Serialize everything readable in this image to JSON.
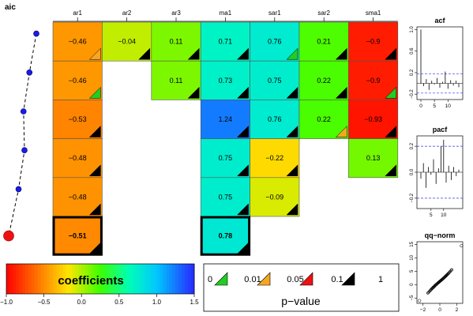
{
  "chart_data": {
    "type": "heatmap",
    "title": "",
    "aic_label": "aic",
    "columns": [
      "ar1",
      "ar2",
      "ar3",
      "ma1",
      "sar1",
      "sar2",
      "sma1"
    ],
    "rows": [
      {
        "aic": 40,
        "cells": [
          {
            "col": "ar1",
            "label": "−0.46",
            "value": -0.46,
            "pv": "0.05"
          },
          {
            "col": "ar2",
            "label": "−0.04",
            "value": -0.04,
            "pv": "1"
          },
          {
            "col": "ar3",
            "label": "0.11",
            "value": 0.11,
            "pv": "1"
          },
          {
            "col": "ma1",
            "label": "0.71",
            "value": 0.71,
            "pv": "1"
          },
          {
            "col": "sar1",
            "label": "0.76",
            "value": 0.76,
            "pv": "0.01"
          },
          {
            "col": "sar2",
            "label": "0.21",
            "value": 0.21,
            "pv": "1"
          },
          {
            "col": "sma1",
            "label": "−0.9",
            "value": -0.9,
            "pv": "1"
          }
        ]
      },
      {
        "aic": 33,
        "cells": [
          {
            "col": "ar1",
            "label": "−0.46",
            "value": -0.46,
            "pv": "0.01"
          },
          {
            "col": "ar3",
            "label": "0.11",
            "value": 0.11,
            "pv": "1"
          },
          {
            "col": "ma1",
            "label": "0.73",
            "value": 0.73,
            "pv": "1"
          },
          {
            "col": "sar1",
            "label": "0.75",
            "value": 0.75,
            "pv": "1"
          },
          {
            "col": "sar2",
            "label": "0.22",
            "value": 0.22,
            "pv": "1"
          },
          {
            "col": "sma1",
            "label": "−0.9",
            "value": -0.9,
            "pv": "0.01"
          }
        ]
      },
      {
        "aic": 27,
        "cells": [
          {
            "col": "ar1",
            "label": "−0.53",
            "value": -0.53,
            "pv": "0"
          },
          {
            "col": "ma1",
            "label": "1.24",
            "value": 1.24,
            "pv": "1"
          },
          {
            "col": "sar1",
            "label": "0.76",
            "value": 0.76,
            "pv": "1"
          },
          {
            "col": "sar2",
            "label": "0.22",
            "value": 0.22,
            "pv": "0.05"
          },
          {
            "col": "sma1",
            "label": "−0.93",
            "value": -0.93,
            "pv": "1"
          }
        ]
      },
      {
        "aic": 28,
        "cells": [
          {
            "col": "ar1",
            "label": "−0.48",
            "value": -0.48,
            "pv": "0"
          },
          {
            "col": "ma1",
            "label": "0.75",
            "value": 0.75,
            "pv": "0"
          },
          {
            "col": "sar1",
            "label": "−0.22",
            "value": -0.22,
            "pv": "1"
          },
          {
            "col": "sma1",
            "label": "0.13",
            "value": 0.13,
            "pv": "1"
          }
        ]
      },
      {
        "aic": 22,
        "cells": [
          {
            "col": "ar1",
            "label": "−0.48",
            "value": -0.48,
            "pv": "0"
          },
          {
            "col": "ma1",
            "label": "0.75",
            "value": 0.75,
            "pv": "0"
          },
          {
            "col": "sar1",
            "label": "−0.09",
            "value": -0.09,
            "pv": "1"
          }
        ]
      },
      {
        "aic": 12,
        "best": true,
        "cells": [
          {
            "col": "ar1",
            "label": "−0.51",
            "value": -0.51,
            "pv": "0"
          },
          {
            "col": "ma1",
            "label": "0.78",
            "value": 0.78,
            "pv": "0"
          }
        ]
      }
    ],
    "colorbar": {
      "title": "coefficients",
      "min": -1.0,
      "max": 1.5,
      "ticks": [
        "−1.0",
        "−0.5",
        "0.0",
        "0.5",
        "1.0",
        "1.5"
      ],
      "tick_values": [
        -1.0,
        -0.5,
        0.0,
        0.5,
        1.0,
        1.5
      ]
    },
    "pvalue_legend": {
      "title": "p−value",
      "breaks": [
        "0",
        "0.01",
        "0.05",
        "0.1",
        "1"
      ],
      "colors": [
        "#22cc22",
        "#f5a623",
        "#ee1111",
        "#000000"
      ]
    },
    "acf": {
      "title": "acf",
      "x_ticks": [
        "0",
        "5",
        "10"
      ],
      "y_ticks": [
        "−0.2",
        "0.2",
        "0.6",
        "1.0"
      ],
      "ylim": [
        -0.3,
        1.05
      ],
      "bound": 0.18,
      "values": [
        1.0,
        -0.05,
        0.08,
        -0.12,
        0.05,
        -0.02,
        0.1,
        -0.08,
        0.03,
        0.22,
        -0.1,
        0.06,
        -0.04,
        0.05,
        -0.07
      ]
    },
    "pacf": {
      "title": "pacf",
      "x_ticks": [
        "5",
        "10"
      ],
      "y_ticks": [
        "−0.2",
        "0.0",
        "0.2"
      ],
      "ylim": [
        -0.28,
        0.28
      ],
      "bound": 0.2,
      "values": [
        -0.05,
        0.07,
        -0.12,
        0.04,
        -0.02,
        0.1,
        -0.09,
        0.03,
        0.2,
        0.25,
        -0.08,
        0.05,
        -0.06,
        0.04,
        -0.03,
        0.02
      ]
    },
    "qqnorm": {
      "title": "qq−norm",
      "x_ticks": [
        "−2",
        "0",
        "2"
      ],
      "y_ticks": [
        "−5",
        "0",
        "5",
        "10",
        "15"
      ],
      "xlim": [
        -2.7,
        2.7
      ],
      "ylim": [
        -7,
        16
      ]
    }
  }
}
